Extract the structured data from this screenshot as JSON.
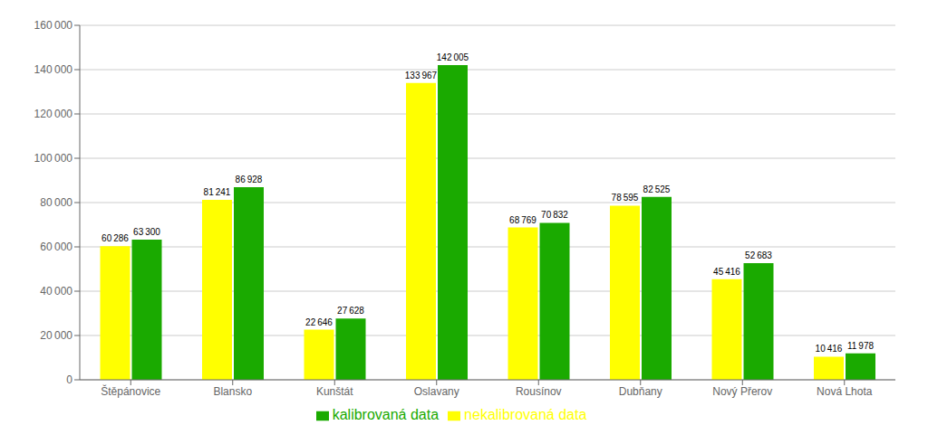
{
  "chart_data": {
    "type": "bar",
    "categories": [
      "Štěpánovice",
      "Blansko",
      "Kunštát",
      "Oslavany",
      "Rousínov",
      "Dubňany",
      "Nový Přerov",
      "Nová Lhota"
    ],
    "series": [
      {
        "name": "nekalibrovaná data",
        "color": "#ffff00",
        "values": [
          60286,
          81241,
          22646,
          133967,
          68769,
          78595,
          45416,
          10416
        ],
        "value_labels": [
          "60 286",
          "81 241",
          "22 646",
          "133 967",
          "68 769",
          "78 595",
          "45 416",
          "10 416"
        ]
      },
      {
        "name": "kalibrovaná data",
        "color": "#1aaa00",
        "values": [
          63300,
          86928,
          27628,
          142005,
          70832,
          82525,
          52683,
          11978
        ],
        "value_labels": [
          "63 300",
          "86 928",
          "27 628",
          "142 005",
          "70 832",
          "82 525",
          "52 683",
          "11 978"
        ]
      }
    ],
    "ylim": [
      0,
      160000
    ],
    "yticks": [
      0,
      {
        "value": 20000,
        "label": "20 000"
      },
      {
        "value": 40000,
        "label": "40 000"
      },
      {
        "value": 60000,
        "label": "60 000"
      },
      {
        "value": 80000,
        "label": "80 000"
      },
      {
        "value": 100000,
        "label": "100 000"
      },
      {
        "value": 120000,
        "label": "120 000"
      },
      {
        "value": 140000,
        "label": "140 000"
      },
      {
        "value": 160000,
        "label": "160 000"
      }
    ],
    "grid": true,
    "legend": "bottom",
    "data_labels": true
  }
}
